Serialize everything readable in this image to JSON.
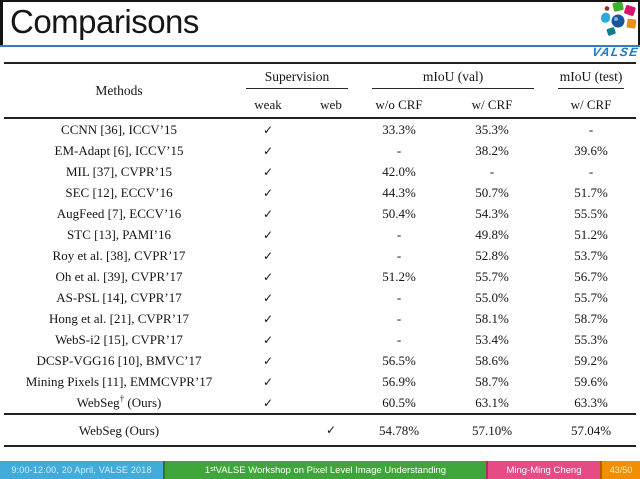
{
  "slide": {
    "title": "Comparisons"
  },
  "logo": {
    "wordmark": "VALSE"
  },
  "table": {
    "check_glyph": "✓",
    "header": {
      "methods": "Methods",
      "supervision": "Supervision",
      "miou_val": "mIoU (val)",
      "miou_test": "mIoU (test)",
      "weak": "weak",
      "web": "web",
      "wo_crf": "w/o CRF",
      "w_crf": "w/ CRF",
      "w_crf_test": "w/ CRF"
    },
    "rows": [
      {
        "method": "CCNN [36], ICCV’15",
        "weak": true,
        "web": false,
        "vals": [
          "33.3%",
          "35.3%",
          "-"
        ]
      },
      {
        "method": "EM-Adapt [6], ICCV’15",
        "weak": true,
        "web": false,
        "vals": [
          "-",
          "38.2%",
          "39.6%"
        ]
      },
      {
        "method": "MIL [37], CVPR’15",
        "weak": true,
        "web": false,
        "vals": [
          "42.0%",
          "-",
          "-"
        ]
      },
      {
        "method": "SEC [12], ECCV’16",
        "weak": true,
        "web": false,
        "vals": [
          "44.3%",
          "50.7%",
          "51.7%"
        ]
      },
      {
        "method": "AugFeed [7], ECCV’16",
        "weak": true,
        "web": false,
        "vals": [
          "50.4%",
          "54.3%",
          "55.5%"
        ]
      },
      {
        "method": "STC [13], PAMI’16",
        "weak": true,
        "web": false,
        "vals": [
          "-",
          "49.8%",
          "51.2%"
        ]
      },
      {
        "method": "Roy et al. [38], CVPR’17",
        "weak": true,
        "web": false,
        "vals": [
          "-",
          "52.8%",
          "53.7%"
        ]
      },
      {
        "method": "Oh et al. [39], CVPR’17",
        "weak": true,
        "web": false,
        "vals": [
          "51.2%",
          "55.7%",
          "56.7%"
        ]
      },
      {
        "method": "AS-PSL [14], CVPR’17",
        "weak": true,
        "web": false,
        "vals": [
          "-",
          "55.0%",
          "55.7%"
        ]
      },
      {
        "method": "Hong et al. [21], CVPR’17",
        "weak": true,
        "web": false,
        "vals": [
          "-",
          "58.1%",
          "58.7%"
        ]
      },
      {
        "method": "WebS-i2 [15], CVPR’17",
        "weak": true,
        "web": false,
        "vals": [
          "-",
          "53.4%",
          "55.3%"
        ]
      },
      {
        "method": "DCSP-VGG16 [10], BMVC’17",
        "weak": true,
        "web": false,
        "vals": [
          "56.5%",
          "58.6%",
          "59.2%"
        ]
      },
      {
        "method": "Mining Pixels [11], EMMCVPR’17",
        "weak": true,
        "web": false,
        "vals": [
          "56.9%",
          "58.7%",
          "59.6%"
        ]
      },
      {
        "method": "WebSeg† (Ours)",
        "weak": true,
        "web": false,
        "vals": [
          "60.5%",
          "63.1%",
          "63.3%"
        ],
        "bold_vals": true
      }
    ],
    "extra_row": {
      "method": "WebSeg (Ours)",
      "weak": false,
      "web": true,
      "vals": [
        "54.78%",
        "57.10%",
        "57.04%"
      ]
    }
  },
  "footer": {
    "session": "9:00-12:00, 20 April, VALSE 2018",
    "workshop_num": "1",
    "workshop_sup": "st",
    "workshop_rest": " VALSE Workshop on Pixel Level Image Understanding",
    "author": "Ming-Ming Cheng",
    "page": "43/50",
    "colors": {
      "session": "#41ACDA",
      "workshop": "#3FA43A",
      "author": "#E64B85",
      "page": "#F18F01",
      "title_rule": "#3A7ABF"
    }
  }
}
